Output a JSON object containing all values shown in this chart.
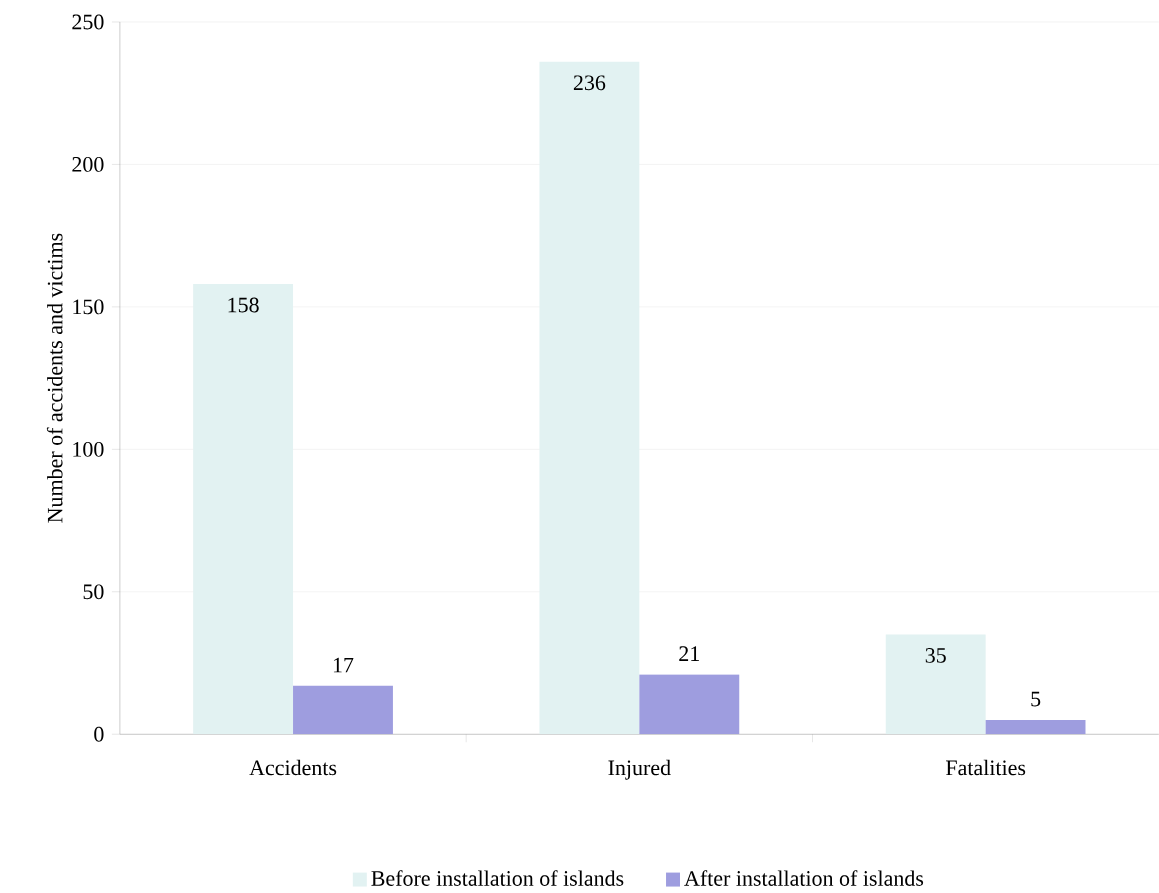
{
  "chart_data": {
    "type": "bar",
    "ylabel": "Number of accidents and victims",
    "categories": [
      "Accidents",
      "Injured",
      "Fatalities"
    ],
    "series": [
      {
        "name": "Before installation of islands",
        "color": "#e2f2f2",
        "values": [
          158,
          236,
          35
        ]
      },
      {
        "name": "After installation of islands",
        "color": "#9e9ddf",
        "values": [
          17,
          21,
          5
        ]
      }
    ],
    "ylim": [
      0,
      250
    ],
    "yticks": [
      0,
      50,
      100,
      150,
      200,
      250
    ],
    "grid": "y",
    "legend": "bottom",
    "data_labels": true
  }
}
